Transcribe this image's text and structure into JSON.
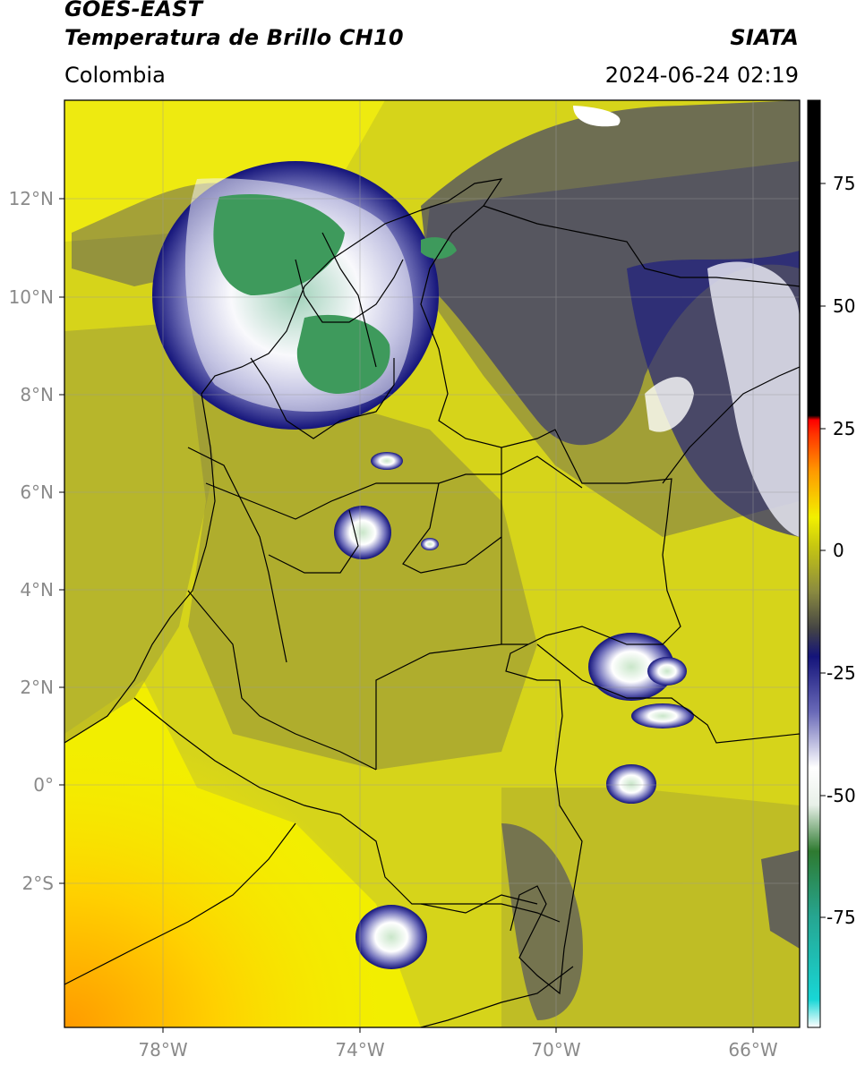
{
  "header": {
    "satellite": "GOES-EAST",
    "product": "Temperatura de Brillo CH10",
    "agency": "SIATA",
    "region": "Colombia",
    "datetime": "2024-06-24 02:19"
  },
  "map": {
    "lat_labels": [
      "12°N",
      "10°N",
      "8°N",
      "6°N",
      "4°N",
      "2°N",
      "0°",
      "2°S"
    ],
    "lon_labels": [
      "78°W",
      "74°W",
      "70°W",
      "66°W"
    ]
  },
  "colorbar": {
    "labels": [
      "75",
      "50",
      "25",
      "0",
      "-25",
      "-50",
      "-75"
    ],
    "colors": {
      "hot": "#000000",
      "warm": "#e00000",
      "orange": "#ff9900",
      "yellow": "#f2f000",
      "olive": "#a7a728",
      "gray": "#555555",
      "navy": "#14147a",
      "white": "#ffffff",
      "green": "#2e8b3d",
      "cyan": "#18d6d6"
    }
  }
}
